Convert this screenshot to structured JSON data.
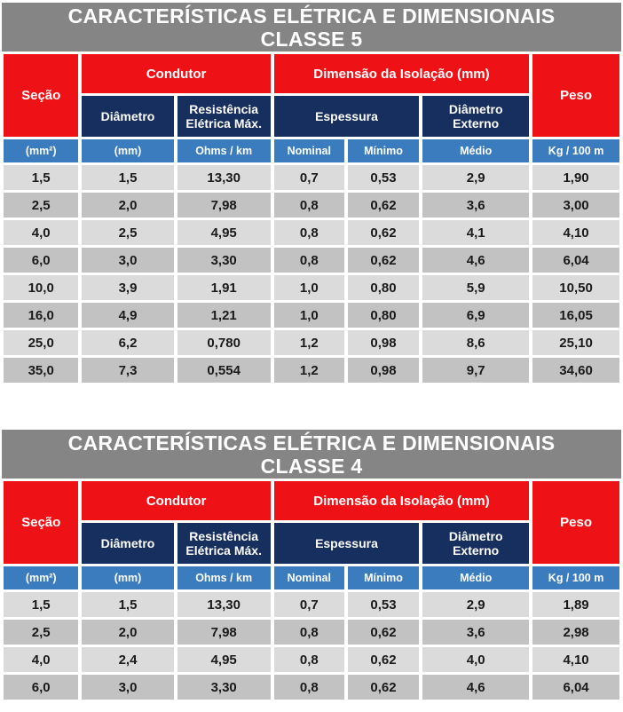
{
  "colors": {
    "title_bar_bg": "#858585",
    "group_header_bg": "#ee1217",
    "sub_header_bg": "#162f5e",
    "units_row_bg": "#3a7cbe",
    "row_light_bg": "#dbdbdb",
    "row_dark_bg": "#c2c2c2",
    "header_text": "#ffffff",
    "data_text": "#1a1a1a"
  },
  "tables": [
    {
      "title_line1": "CARACTERÍSTICAS ELÉTRICA E DIMENSIONAIS",
      "title_line2": "CLASSE 5",
      "columns": {
        "secao": "Seção",
        "condutor": "Condutor",
        "dimensao_isolacao": "Dimensão da Isolação (mm)",
        "peso": "Peso",
        "diametro": "Diâmetro",
        "resistencia": "Resistência Elétrica Máx.",
        "espessura": "Espessura",
        "diametro_externo": "Diâmetro Externo"
      },
      "units": [
        "(mm²)",
        "(mm)",
        "Ohms / km",
        "Nominal",
        "Mínimo",
        "Médio",
        "Kg / 100 m"
      ],
      "rows": [
        [
          "1,5",
          "1,5",
          "13,30",
          "0,7",
          "0,53",
          "2,9",
          "1,90"
        ],
        [
          "2,5",
          "2,0",
          "7,98",
          "0,8",
          "0,62",
          "3,6",
          "3,00"
        ],
        [
          "4,0",
          "2,5",
          "4,95",
          "0,8",
          "0,62",
          "4,1",
          "4,10"
        ],
        [
          "6,0",
          "3,0",
          "3,30",
          "0,8",
          "0,62",
          "4,6",
          "6,04"
        ],
        [
          "10,0",
          "3,9",
          "1,91",
          "1,0",
          "0,80",
          "5,9",
          "10,50"
        ],
        [
          "16,0",
          "4,9",
          "1,21",
          "1,0",
          "0,80",
          "6,9",
          "16,05"
        ],
        [
          "25,0",
          "6,2",
          "0,780",
          "1,2",
          "0,98",
          "8,6",
          "25,10"
        ],
        [
          "35,0",
          "7,3",
          "0,554",
          "1,2",
          "0,98",
          "9,7",
          "34,60"
        ]
      ]
    },
    {
      "title_line1": "CARACTERÍSTICAS ELÉTRICA E DIMENSIONAIS",
      "title_line2": "CLASSE 4",
      "columns": {
        "secao": "Seção",
        "condutor": "Condutor",
        "dimensao_isolacao": "Dimensão da Isolação (mm)",
        "peso": "Peso",
        "diametro": "Diâmetro",
        "resistencia": "Resistência Elétrica Máx.",
        "espessura": "Espessura",
        "diametro_externo": "Diâmetro Externo"
      },
      "units": [
        "(mm²)",
        "(mm)",
        "Ohms / km",
        "Nominal",
        "Mínimo",
        "Médio",
        "Kg / 100 m"
      ],
      "rows": [
        [
          "1,5",
          "1,5",
          "13,30",
          "0,7",
          "0,53",
          "2,9",
          "1,89"
        ],
        [
          "2,5",
          "2,0",
          "7,98",
          "0,8",
          "0,62",
          "3,6",
          "2,98"
        ],
        [
          "4,0",
          "2,4",
          "4,95",
          "0,8",
          "0,62",
          "4,0",
          "4,10"
        ],
        [
          "6,0",
          "3,0",
          "3,30",
          "0,8",
          "0,62",
          "4,6",
          "6,04"
        ]
      ]
    }
  ]
}
